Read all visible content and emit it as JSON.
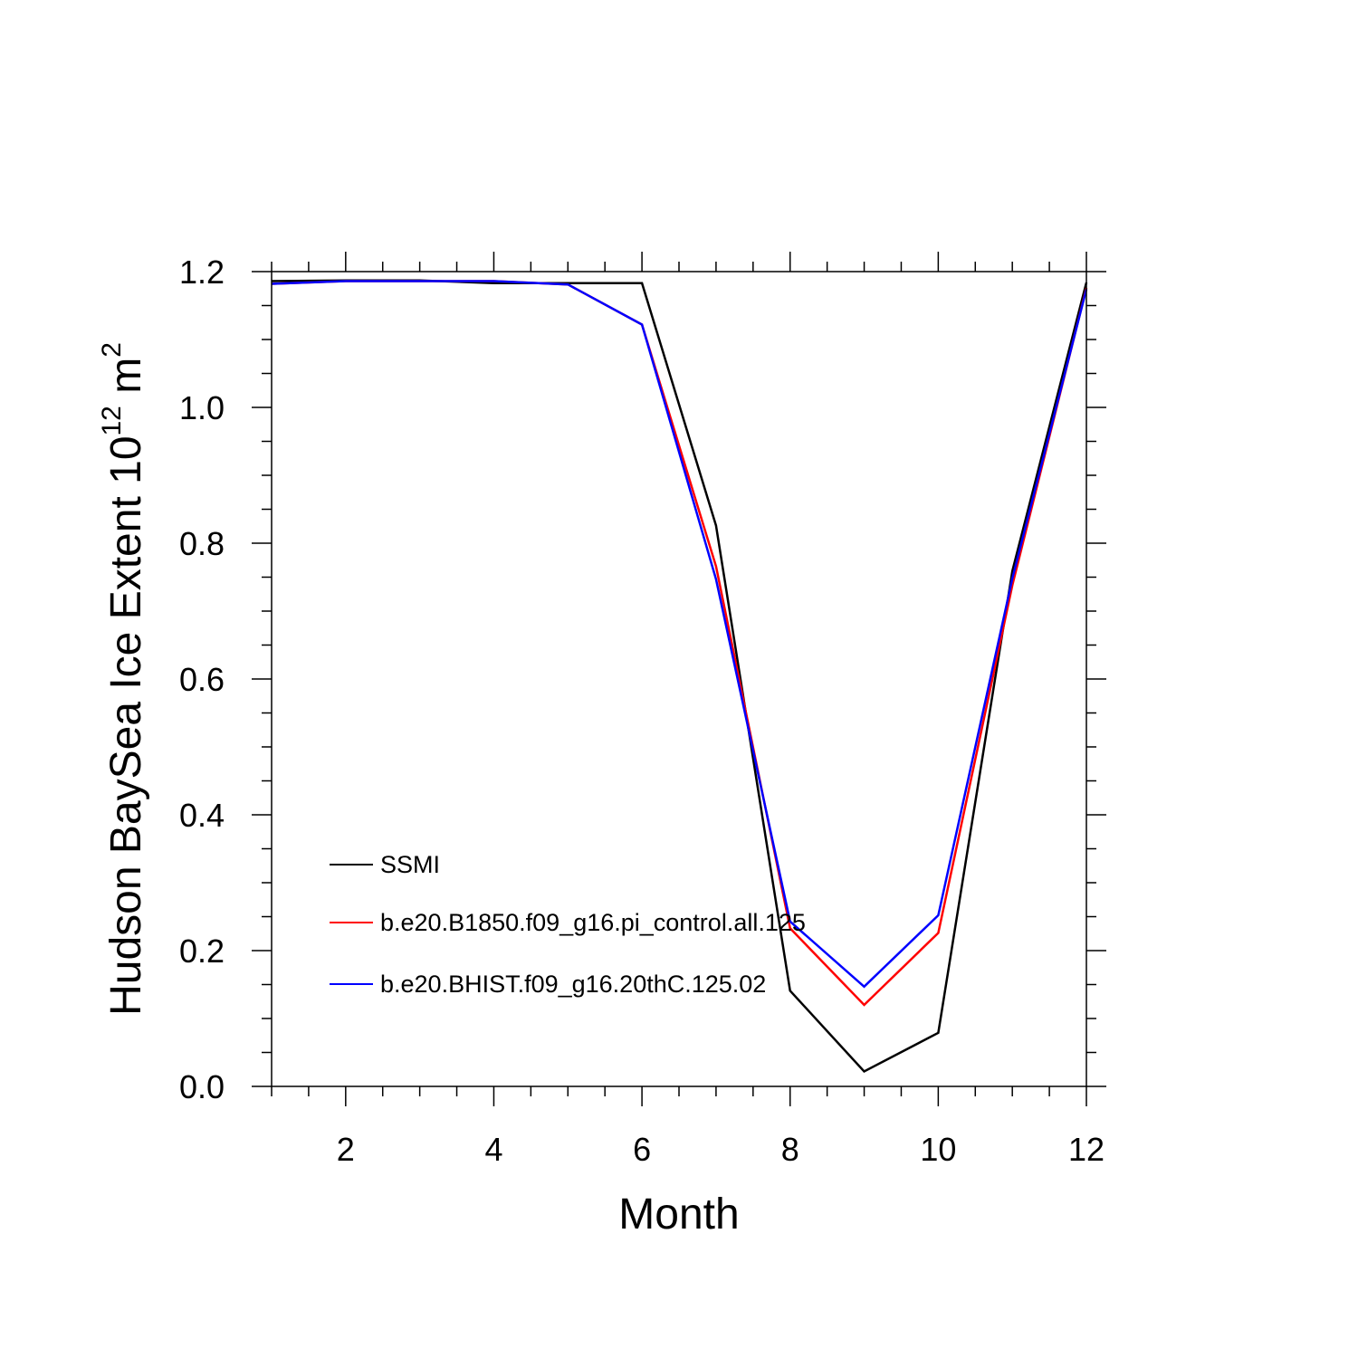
{
  "chart_data": {
    "type": "line",
    "xlabel": "Month",
    "ylabel": {
      "prefix": "Hudson BaySea Ice Extent 10",
      "exponent": "12",
      "unit": " m",
      "unit_exponent": "2"
    },
    "xlim": [
      1,
      12
    ],
    "ylim": [
      0,
      1.2
    ],
    "x_ticks": [
      2,
      4,
      6,
      8,
      10,
      12
    ],
    "x_tick_labels": [
      "2",
      "4",
      "6",
      "8",
      "10",
      "12"
    ],
    "y_ticks": [
      0,
      0.2,
      0.4,
      0.6,
      0.8,
      1.0,
      1.2
    ],
    "y_tick_labels": [
      "0.0",
      "0.2",
      "0.4",
      "0.6",
      "0.8",
      "1.0",
      "1.2"
    ],
    "grid": false,
    "legend_placement": "lower-left",
    "x": [
      1,
      2,
      3,
      4,
      5,
      6,
      7,
      8,
      9,
      10,
      11,
      12
    ],
    "series": [
      {
        "name": "SSMI",
        "color": "#000000",
        "values": [
          1.186,
          1.187,
          1.187,
          1.183,
          1.183,
          1.183,
          0.826,
          0.141,
          0.022,
          0.079,
          0.759,
          1.184
        ]
      },
      {
        "name": "b.e20.B1850.f09_g16.pi_control.all.125",
        "color": "#ff0000",
        "values": [
          1.182,
          1.186,
          1.186,
          1.186,
          1.181,
          1.122,
          0.766,
          0.233,
          0.12,
          0.226,
          0.738,
          1.176
        ]
      },
      {
        "name": "b.e20.BHIST.f09_g16.20thC.125.02",
        "color": "#0000ff",
        "values": [
          1.182,
          1.186,
          1.186,
          1.186,
          1.181,
          1.122,
          0.747,
          0.243,
          0.147,
          0.252,
          0.748,
          1.174
        ]
      }
    ]
  }
}
